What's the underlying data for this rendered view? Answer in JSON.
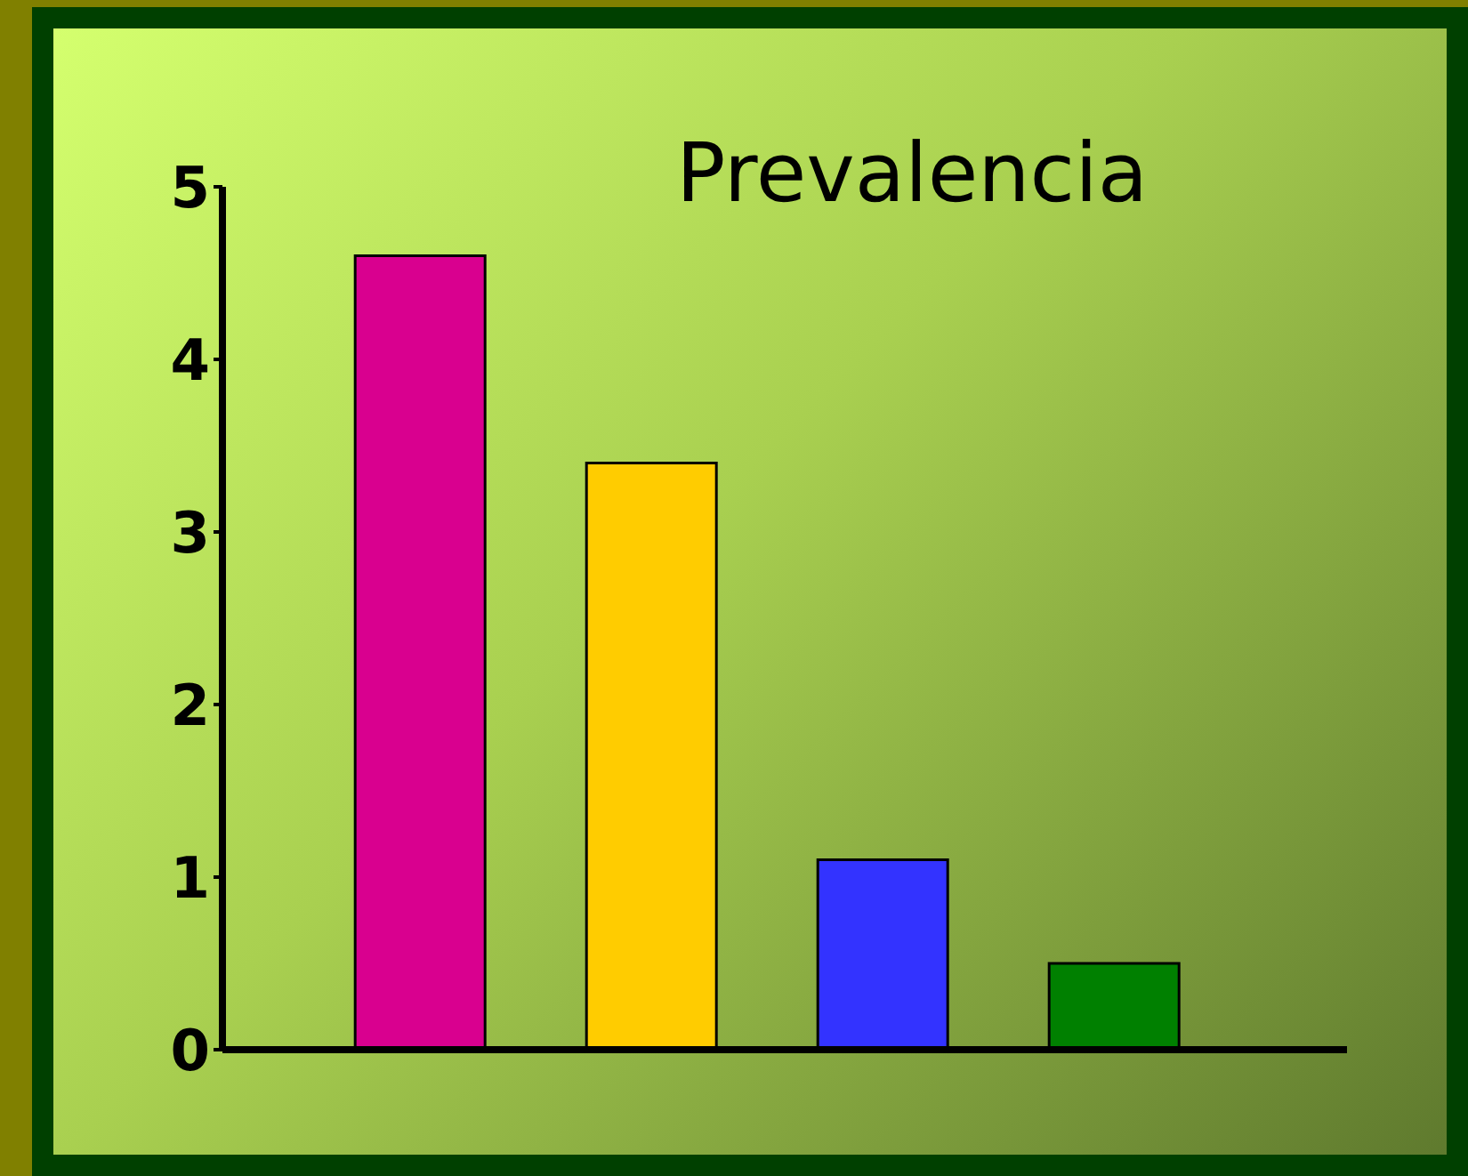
{
  "chart_data": {
    "type": "bar",
    "title": "Prevalencia",
    "categories": [
      null,
      null,
      null,
      null
    ],
    "values": [
      4.6,
      3.4,
      1.1,
      0.5
    ],
    "colors": [
      "#d9008f",
      "#ffcc00",
      "#3333ff",
      "#008000"
    ],
    "ylim": [
      0,
      5
    ],
    "yticks": [
      0,
      1,
      2,
      3,
      4,
      5
    ]
  }
}
